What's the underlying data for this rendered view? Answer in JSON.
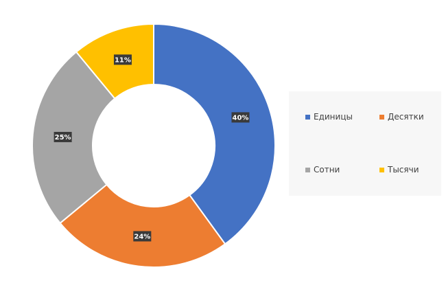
{
  "chart_data": {
    "type": "pie",
    "donut": true,
    "title": "",
    "categories": [
      "Единицы",
      "Десятки",
      "Сотни",
      "Тысячи"
    ],
    "values": [
      40,
      24,
      25,
      11
    ],
    "value_labels": [
      "40%",
      "24%",
      "25%",
      "11%"
    ],
    "colors": [
      "#4472C4",
      "#ED7D31",
      "#A5A5A5",
      "#FFC000"
    ],
    "legend_position": "right"
  }
}
